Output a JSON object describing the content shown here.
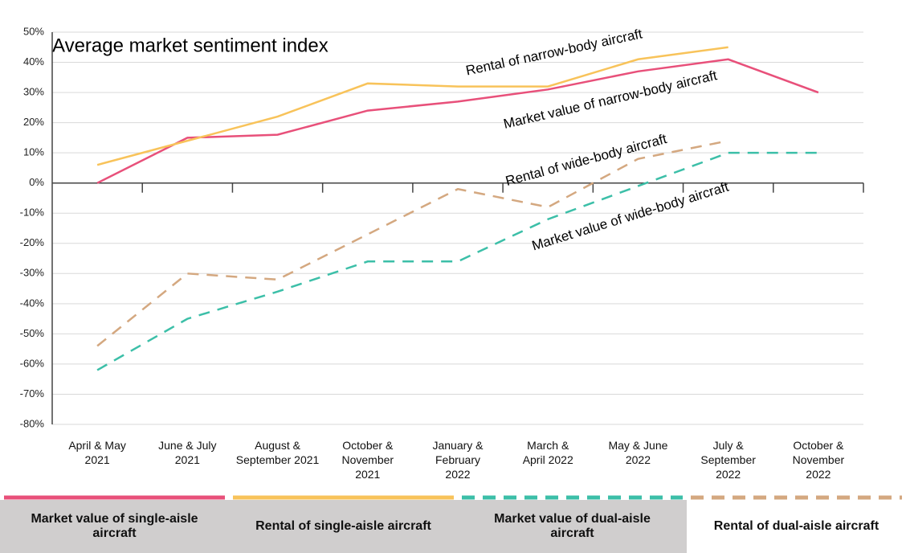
{
  "chart_data": {
    "type": "line",
    "subtitle": "Average market sentiment index",
    "categories": [
      "April & May\n2021",
      "June & July\n2021",
      "August &\nSeptember 2021",
      "October &\nNovember\n2021",
      "January &\nFebruary\n2022",
      "March &\nApril 2022",
      "May & June\n2022",
      "July &\nSeptember\n2022",
      "October &\nNovember\n2022"
    ],
    "series": [
      {
        "name": "Market value of single-aisle aircraft",
        "color": "#e8507a",
        "dashed": false,
        "values": [
          0,
          15,
          16,
          24,
          27,
          31,
          37,
          41,
          30
        ]
      },
      {
        "name": "Rental of single-aisle aircraft",
        "color": "#f8c35a",
        "dashed": false,
        "values": [
          6,
          14,
          22,
          33,
          32,
          32,
          41,
          45,
          null
        ]
      },
      {
        "name": "Market value of dual-aisle aircraft",
        "color": "#3cbfa8",
        "dashed": true,
        "values": [
          -62,
          -45,
          -36,
          -26,
          -26,
          -12,
          -1,
          10,
          10
        ]
      },
      {
        "name": "Rental of dual-aisle aircraft",
        "color": "#d4a880",
        "dashed": true,
        "values": [
          -54,
          -30,
          -32,
          -17,
          -2,
          -8,
          8,
          14,
          null
        ]
      }
    ],
    "annotations": [
      "Rental of narrow-body aircraft",
      "Market value of narrow-body aircraft",
      "Rental of wide-body aircraft",
      "Market value of wide-body aircraft"
    ],
    "ylim": [
      -80,
      50
    ],
    "yticks": [
      {
        "value": 50,
        "label": "50%"
      },
      {
        "value": 40,
        "label": "40%"
      },
      {
        "value": 30,
        "label": "30%"
      },
      {
        "value": 20,
        "label": "20%"
      },
      {
        "value": 10,
        "label": "10%"
      },
      {
        "value": 0,
        "label": "0%"
      },
      {
        "value": -10,
        "label": "-10%"
      },
      {
        "value": -20,
        "label": "-20%"
      },
      {
        "value": -30,
        "label": "-30%"
      },
      {
        "value": -40,
        "label": "-40%"
      },
      {
        "value": -50,
        "label": "-50%"
      },
      {
        "value": -60,
        "label": "-60%"
      },
      {
        "value": -70,
        "label": "-70%"
      },
      {
        "value": -80,
        "label": "-80%"
      }
    ],
    "grid": true
  }
}
